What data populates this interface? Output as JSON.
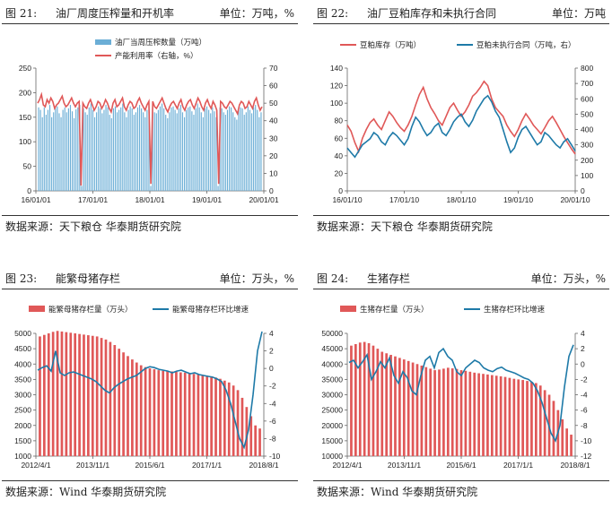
{
  "panels": [
    {
      "fig": "图 21:",
      "title": "油厂周度压榨量和开机率",
      "unit": "单位：万吨，%",
      "source": "数据来源：天下粮仓  华泰期货研究院"
    },
    {
      "fig": "图 22:",
      "title": "油厂豆粕库存和未执行合同",
      "unit": "单位：万吨",
      "source": "数据来源：天下粮仓  华泰期货研究院"
    },
    {
      "fig": "图 23:",
      "title": "能繁母猪存栏",
      "unit": "单位：万头，%",
      "source": "数据来源：Wind  华泰期货研究院"
    },
    {
      "fig": "图 24:",
      "title": "生猪存栏",
      "unit": "单位：万头，%",
      "source": "数据来源：Wind  华泰期货研究院"
    }
  ],
  "chart_data": [
    {
      "type": "bar",
      "legend": [
        "油厂当周压榨数量（万吨）",
        "产能利用率（右轴，%）"
      ],
      "colors": [
        "#6BAED6",
        "#E05858"
      ],
      "x_ticks": [
        "16/01/01",
        "17/01/01",
        "18/01/01",
        "19/01/01",
        "20/01/01"
      ],
      "y_left": [
        0,
        250
      ],
      "y_left_ticks": [
        0,
        50,
        100,
        150,
        200,
        250
      ],
      "y_right": [
        0,
        70
      ],
      "y_right_ticks": [
        0,
        10,
        20,
        30,
        40,
        50,
        60,
        70
      ],
      "bars": [
        170,
        165,
        150,
        170,
        155,
        165,
        175,
        150,
        160,
        168,
        172,
        158,
        150,
        165,
        170,
        160,
        168,
        175,
        162,
        148,
        166,
        170,
        175,
        10,
        168,
        160,
        155,
        170,
        178,
        165,
        150,
        160,
        172,
        168,
        158,
        165,
        175,
        170,
        155,
        148,
        168,
        172,
        160,
        165,
        170,
        178,
        160,
        150,
        165,
        172,
        168,
        155,
        160,
        170,
        175,
        168,
        160,
        150,
        165,
        172,
        10,
        170,
        160,
        158,
        165,
        172,
        178,
        168,
        155,
        148,
        160,
        170,
        172,
        165,
        158,
        168,
        175,
        160,
        150,
        165,
        170,
        172,
        162,
        155,
        168,
        178,
        170,
        160,
        150,
        168,
        172,
        165,
        158,
        170,
        162,
        150,
        10,
        170,
        168,
        160,
        155,
        165,
        172,
        170,
        160,
        150,
        145,
        165,
        170,
        168,
        155,
        160,
        172,
        165,
        158,
        170,
        175,
        165,
        150,
        160
      ],
      "rate": [
        50,
        52,
        55,
        49,
        48,
        52,
        50,
        53,
        51,
        47,
        49,
        50,
        52,
        54,
        50,
        48,
        49,
        51,
        53,
        50,
        48,
        50,
        51,
        3,
        50,
        48,
        47,
        50,
        52,
        49,
        46,
        48,
        51,
        50,
        47,
        49,
        52,
        50,
        47,
        45,
        50,
        52,
        48,
        49,
        51,
        53,
        48,
        46,
        49,
        51,
        50,
        47,
        48,
        51,
        53,
        50,
        48,
        46,
        49,
        51,
        4,
        51,
        48,
        47,
        49,
        51,
        53,
        50,
        47,
        45,
        48,
        50,
        51,
        49,
        47,
        50,
        52,
        48,
        46,
        49,
        51,
        52,
        49,
        47,
        50,
        53,
        51,
        48,
        46,
        50,
        52,
        49,
        47,
        51,
        49,
        46,
        4,
        51,
        50,
        48,
        47,
        49,
        51,
        50,
        48,
        46,
        44,
        49,
        51,
        50,
        47,
        48,
        51,
        49,
        47,
        51,
        53,
        49,
        46,
        48
      ]
    },
    {
      "type": "line",
      "legend": [
        "豆粕库存（万吨）",
        "豆粕未执行合同（万吨，右）"
      ],
      "colors": [
        "#E05858",
        "#1E7AA8"
      ],
      "x_ticks": [
        "16/01/10",
        "17/01/10",
        "18/01/10",
        "19/01/10",
        "20/01/10"
      ],
      "y_left": [
        0,
        140
      ],
      "y_left_ticks": [
        0,
        20,
        40,
        60,
        80,
        100,
        120,
        140
      ],
      "y_right": [
        0,
        800
      ],
      "y_right_ticks": [
        0,
        100,
        200,
        300,
        400,
        500,
        600,
        700,
        800
      ],
      "series": [
        {
          "values": [
            75,
            68,
            55,
            45,
            60,
            70,
            78,
            82,
            75,
            70,
            80,
            90,
            85,
            78,
            72,
            68,
            75,
            85,
            98,
            110,
            118,
            105,
            95,
            88,
            80,
            75,
            85,
            95,
            100,
            92,
            85,
            90,
            98,
            108,
            112,
            118,
            125,
            120,
            105,
            95,
            90,
            85,
            75,
            68,
            62,
            70,
            80,
            88,
            82,
            75,
            70,
            65,
            72,
            80,
            85,
            78,
            70,
            62,
            55,
            48,
            42
          ]
        },
        {
          "values": [
            280,
            250,
            220,
            260,
            300,
            320,
            340,
            380,
            360,
            320,
            300,
            350,
            380,
            360,
            330,
            300,
            340,
            420,
            480,
            450,
            400,
            360,
            380,
            420,
            440,
            380,
            360,
            400,
            450,
            480,
            500,
            450,
            420,
            460,
            520,
            560,
            600,
            620,
            580,
            520,
            480,
            400,
            320,
            250,
            280,
            350,
            400,
            420,
            380,
            340,
            300,
            320,
            380,
            360,
            330,
            300,
            280,
            320,
            340,
            300,
            260
          ]
        }
      ]
    },
    {
      "type": "bar",
      "legend": [
        "能繁母猪存栏量（万头）",
        "能繁母猪存栏环比增速"
      ],
      "colors": [
        "#E05858",
        "#1E7AA8"
      ],
      "x_ticks": [
        "2012/4/1",
        "2013/11/1",
        "2015/6/1",
        "2017/1/1",
        "2018/8/1"
      ],
      "y_left": [
        1000,
        5000
      ],
      "y_left_ticks": [
        1000,
        1500,
        2000,
        2500,
        3000,
        3500,
        4000,
        4500,
        5000
      ],
      "y_right": [
        -10,
        4
      ],
      "y_right_ticks": [
        -10,
        -8,
        -6,
        -4,
        -2,
        0,
        2,
        4
      ],
      "bars": [
        4900,
        4950,
        5000,
        5050,
        5080,
        5060,
        5040,
        5020,
        5000,
        4980,
        4960,
        4940,
        4920,
        4900,
        4850,
        4800,
        4720,
        4620,
        4500,
        4380,
        4260,
        4150,
        4050,
        3960,
        3900,
        3860,
        3830,
        3800,
        3780,
        3770,
        3760,
        3750,
        3730,
        3720,
        3700,
        3680,
        3660,
        3640,
        3620,
        3600,
        3560,
        3520,
        3460,
        3400,
        3300,
        3150,
        2900,
        2600,
        2300,
        2000,
        1900
      ],
      "growth": [
        -0.2,
        0.1,
        0.3,
        -0.3,
        2.0,
        -0.5,
        -0.8,
        -0.5,
        -0.4,
        -0.6,
        -0.8,
        -1.0,
        -1.2,
        -1.5,
        -2.0,
        -2.5,
        -2.8,
        -2.2,
        -1.8,
        -1.5,
        -1.2,
        -1.0,
        -0.8,
        -0.4,
        0.0,
        0.2,
        0.1,
        -0.1,
        -0.2,
        -0.3,
        -0.5,
        -0.3,
        -0.2,
        -0.4,
        -0.6,
        -0.5,
        -0.7,
        -0.8,
        -0.9,
        -1.0,
        -1.2,
        -1.5,
        -2.5,
        -4.0,
        -6.0,
        -8.0,
        -9.0,
        -7.0,
        -3.0,
        2.0,
        4.2
      ]
    },
    {
      "type": "bar",
      "legend": [
        "生猪存栏量（万头）",
        "生猪存栏环比增速"
      ],
      "colors": [
        "#E05858",
        "#1E7AA8"
      ],
      "x_ticks": [
        "2012/4/1",
        "2013/11/1",
        "2015/6/1",
        "2017/1/1",
        "2018/8/1"
      ],
      "y_left": [
        10000,
        50000
      ],
      "y_left_ticks": [
        10000,
        15000,
        20000,
        25000,
        30000,
        35000,
        40000,
        45000,
        50000
      ],
      "y_right": [
        -12,
        4
      ],
      "y_right_ticks": [
        -12,
        -10,
        -8,
        -6,
        -4,
        -2,
        0,
        2,
        4
      ],
      "bars": [
        46000,
        46500,
        47000,
        47200,
        46800,
        46000,
        45000,
        44000,
        43500,
        43000,
        42500,
        42000,
        41500,
        41000,
        40500,
        40000,
        39500,
        39000,
        38500,
        38000,
        38200,
        38500,
        38800,
        38600,
        38400,
        38000,
        37800,
        37500,
        37200,
        37000,
        36800,
        36600,
        36400,
        36200,
        36000,
        35800,
        35500,
        35200,
        35000,
        34800,
        34500,
        34200,
        33800,
        33000,
        31500,
        30000,
        28000,
        25000,
        22000,
        19000,
        17000
      ],
      "growth": [
        0.2,
        0.5,
        -0.5,
        0.3,
        1.2,
        -2.0,
        -1.0,
        0.3,
        -0.5,
        0.8,
        -1.5,
        -2.5,
        -1.0,
        -1.8,
        -3.5,
        -4.0,
        -1.5,
        0.5,
        1.0,
        -0.5,
        1.5,
        2.0,
        1.0,
        0.5,
        -1.0,
        -1.5,
        -0.5,
        0.0,
        0.5,
        0.2,
        -0.5,
        -0.8,
        -1.0,
        -0.6,
        -0.4,
        -0.8,
        -1.0,
        -1.2,
        -1.5,
        -1.8,
        -2.0,
        -2.5,
        -3.5,
        -5.0,
        -7.0,
        -9.0,
        -10.0,
        -8.0,
        -3.0,
        1.0,
        2.5
      ]
    }
  ]
}
